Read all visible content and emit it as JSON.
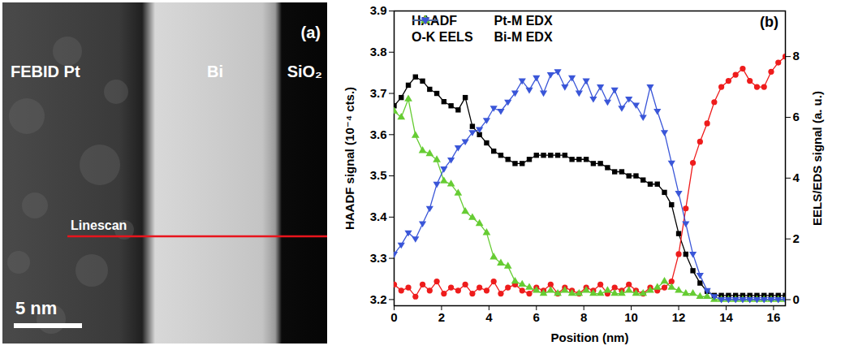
{
  "panel_a": {
    "label": "(a)",
    "regions": [
      "FEBID Pt",
      "Bi",
      "SiO₂"
    ],
    "linescan": "Linescan",
    "scale_bar": "5 nm"
  },
  "chart_data": {
    "type": "line",
    "panel_label": "(b)",
    "x_label": "Position (nm)",
    "y_label": "HAADF signal (10⁻⁴ cts.)",
    "y2_label": "EELS/EDS signal (a. u.)",
    "xlim": [
      0,
      16.5
    ],
    "xticks": [
      0,
      2,
      4,
      6,
      8,
      10,
      12,
      14,
      16
    ],
    "ylim": [
      3.185,
      3.9
    ],
    "yticks": [
      3.2,
      3.3,
      3.4,
      3.5,
      3.6,
      3.7,
      3.8,
      3.9
    ],
    "y2lim": [
      -0.2,
      9.5
    ],
    "y2ticks": [
      0,
      2,
      4,
      6,
      8
    ],
    "grid": false,
    "legend": "top",
    "x": [
      0,
      0.3,
      0.6,
      0.9,
      1.2,
      1.5,
      1.8,
      2.1,
      2.4,
      2.7,
      3.0,
      3.3,
      3.6,
      3.9,
      4.2,
      4.5,
      4.8,
      5.1,
      5.4,
      5.7,
      6.0,
      6.3,
      6.6,
      6.9,
      7.2,
      7.5,
      7.8,
      8.1,
      8.4,
      8.7,
      9.0,
      9.3,
      9.6,
      9.9,
      10.2,
      10.5,
      10.8,
      11.1,
      11.4,
      11.7,
      12.0,
      12.3,
      12.6,
      12.9,
      13.2,
      13.5,
      13.8,
      14.1,
      14.4,
      14.7,
      15.0,
      15.3,
      15.6,
      15.9,
      16.2,
      16.5
    ],
    "series": [
      {
        "name": "HAADF",
        "color": "#000000",
        "marker": "square",
        "axis": "y",
        "values": [
          3.67,
          3.69,
          3.72,
          3.74,
          3.73,
          3.71,
          3.7,
          3.68,
          3.67,
          3.66,
          3.69,
          3.62,
          3.6,
          3.58,
          3.56,
          3.55,
          3.54,
          3.53,
          3.53,
          3.54,
          3.55,
          3.55,
          3.55,
          3.55,
          3.55,
          3.54,
          3.54,
          3.54,
          3.53,
          3.53,
          3.52,
          3.51,
          3.51,
          3.5,
          3.5,
          3.49,
          3.48,
          3.48,
          3.46,
          3.43,
          3.36,
          3.31,
          3.27,
          3.24,
          3.22,
          3.21,
          3.21,
          3.21,
          3.21,
          3.21,
          3.21,
          3.21,
          3.21,
          3.21,
          3.21,
          3.21
        ]
      },
      {
        "name": "O-K EELS",
        "color": "#ee1c1c",
        "marker": "circle",
        "axis": "y2",
        "values": [
          0.5,
          0.3,
          0.4,
          0.1,
          0.5,
          0.3,
          0.6,
          0.2,
          0.4,
          0.3,
          0.5,
          0.2,
          0.4,
          0.3,
          0.6,
          0.2,
          0.4,
          0.5,
          0.3,
          0.2,
          0.4,
          0.3,
          0.5,
          0.2,
          0.4,
          0.3,
          0.2,
          0.4,
          0.3,
          0.5,
          0.2,
          0.4,
          0.3,
          0.5,
          0.3,
          0.2,
          0.4,
          0.3,
          0.4,
          0.6,
          1.5,
          3.0,
          4.5,
          5.2,
          5.8,
          6.5,
          7.0,
          7.2,
          7.4,
          7.6,
          7.2,
          7.0,
          7.0,
          7.5,
          7.8,
          8.0
        ]
      },
      {
        "name": "Pt-M EDX",
        "color": "#66cc33",
        "marker": "triangle",
        "axis": "y2",
        "values": [
          6.2,
          6.0,
          6.6,
          5.4,
          4.9,
          4.8,
          4.6,
          3.9,
          3.8,
          3.5,
          2.9,
          2.7,
          2.5,
          2.2,
          1.4,
          1.2,
          1.1,
          0.6,
          0.5,
          0.4,
          0.3,
          0.2,
          0.3,
          0.2,
          0.3,
          0.2,
          0.2,
          0.3,
          0.2,
          0.2,
          0.3,
          0.2,
          0.2,
          0.3,
          0.2,
          0.2,
          0.3,
          0.4,
          0.6,
          0.4,
          0.3,
          0.2,
          0.2,
          0.1,
          0.1,
          0.0,
          0,
          0,
          0,
          0,
          0,
          0,
          0,
          0,
          0,
          0
        ]
      },
      {
        "name": "Bi-M EDX",
        "color": "#3a56d8",
        "marker": "triangle-down",
        "axis": "y2",
        "values": [
          1.5,
          1.8,
          2.2,
          2.0,
          2.5,
          3.0,
          3.8,
          4.3,
          4.6,
          5.0,
          5.2,
          5.5,
          5.6,
          5.9,
          6.3,
          6.2,
          6.5,
          6.8,
          7.2,
          6.9,
          7.3,
          6.8,
          7.4,
          7.5,
          7.0,
          7.3,
          6.8,
          7.2,
          6.6,
          7.0,
          6.5,
          6.9,
          6.3,
          6.6,
          6.4,
          6.0,
          7.0,
          6.2,
          5.5,
          4.5,
          3.5,
          2.5,
          1.5,
          0.8,
          0.3,
          0.1,
          0,
          0,
          0,
          0,
          0,
          0,
          0,
          0,
          0,
          0
        ]
      }
    ]
  }
}
